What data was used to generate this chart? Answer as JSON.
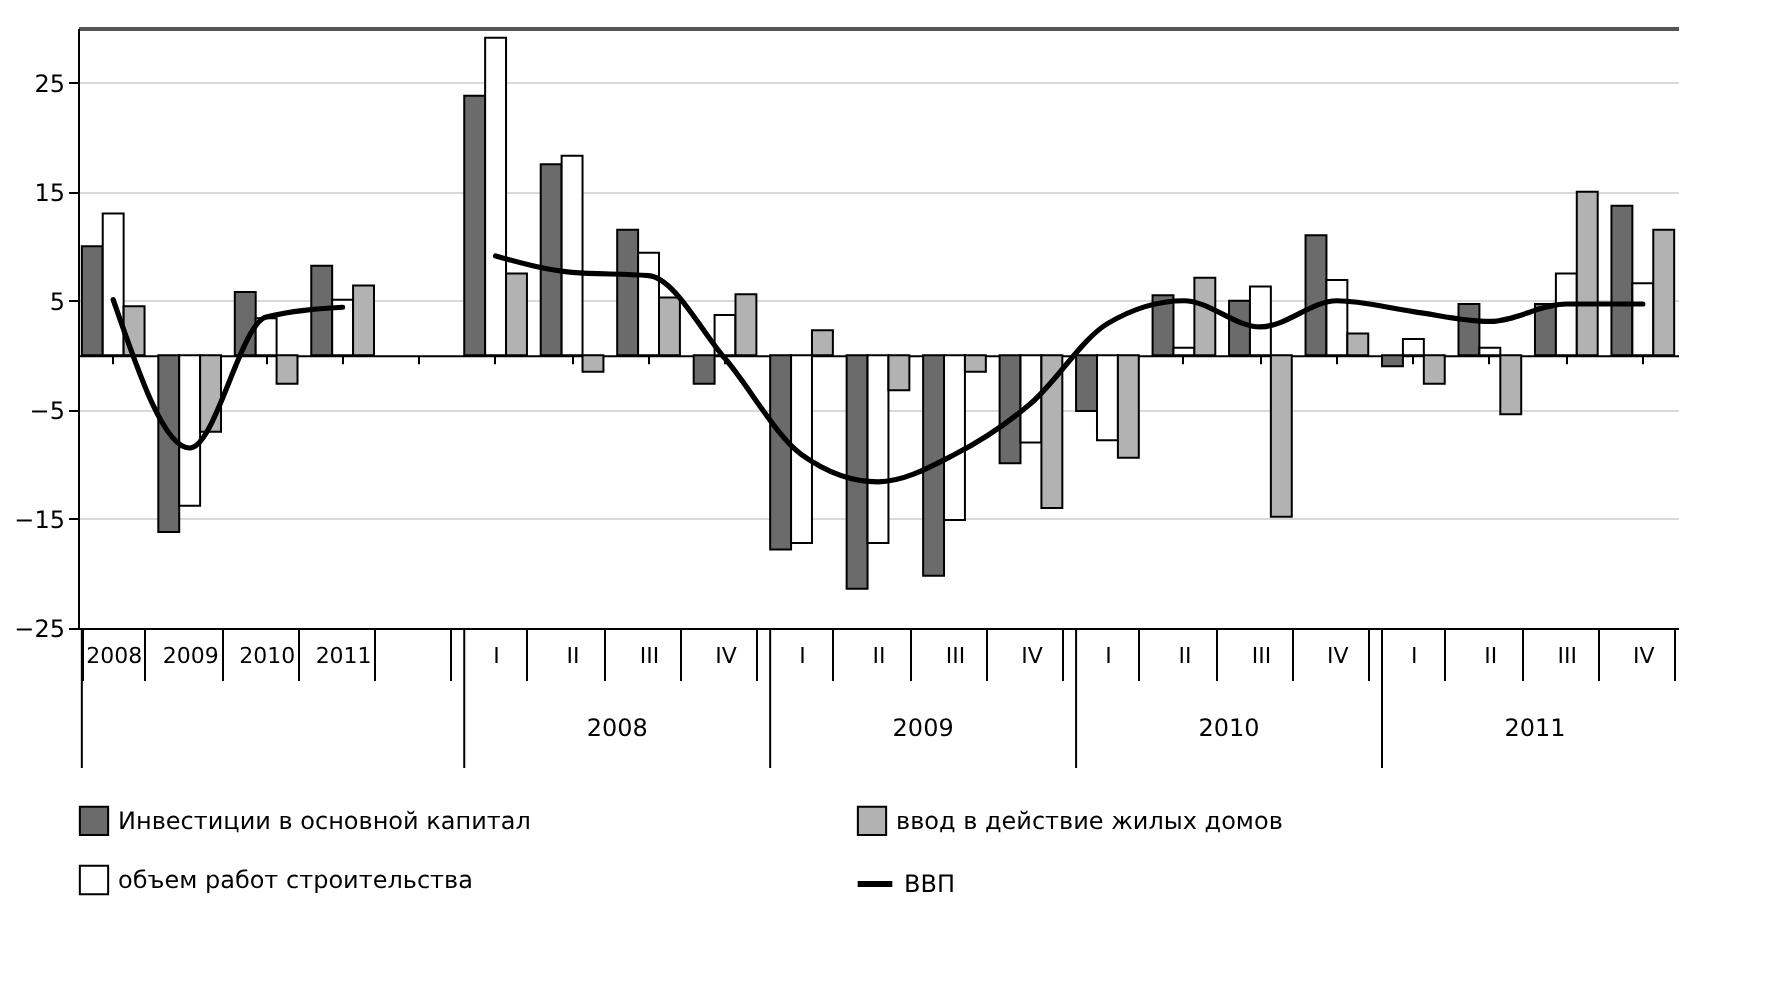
{
  "chart_data": {
    "type": "bar",
    "categories": [
      "2008",
      "2009",
      "2010",
      "2011",
      null,
      "I",
      "II",
      "III",
      "IV",
      "I",
      "II",
      "III",
      "IV",
      "I",
      "II",
      "III",
      "IV",
      "I",
      "II",
      "III",
      "IV"
    ],
    "series": [
      {
        "name": "Инвестиции в основной капитал",
        "color": "#6b6b6b",
        "values": [
          10,
          -16.2,
          5.8,
          8.2,
          null,
          23.8,
          17.5,
          11.5,
          -2.6,
          -17.8,
          -21.4,
          -20.2,
          -9.9,
          -5.1,
          5.5,
          5.0,
          11.0,
          -1.0,
          4.7,
          4.7,
          13.7
        ]
      },
      {
        "name": "объем работ строительства",
        "color": "#ffffff",
        "values": [
          13,
          -13.8,
          3.4,
          5.1,
          null,
          29.1,
          18.3,
          9.4,
          3.7,
          -17.2,
          -17.2,
          -15.1,
          -8.0,
          -7.8,
          0.7,
          6.3,
          6.9,
          1.5,
          0.7,
          7.5,
          6.6
        ]
      },
      {
        "name": "ввод в действие жилых домов",
        "color": "#b2b2b2",
        "values": [
          4.5,
          -7.0,
          -2.6,
          6.4,
          null,
          7.5,
          -1.5,
          5.3,
          5.6,
          2.3,
          -3.2,
          -1.5,
          -14.0,
          -9.4,
          7.1,
          -14.8,
          2.0,
          -2.6,
          -5.4,
          15.0,
          11.5
        ]
      },
      {
        "name": "ВВП",
        "type": "line",
        "color": "#000000",
        "values": [
          5.1,
          -8.5,
          3.5,
          4.4,
          null,
          9.1,
          7.6,
          7.3,
          -0.3,
          -9.1,
          -11.6,
          -9.1,
          -4.4,
          2.9,
          5.0,
          2.6,
          5.0,
          4.0,
          3.1,
          4.7,
          4.7
        ]
      }
    ],
    "annotations": [
      "2008",
      "2009",
      "2010",
      "2011"
    ],
    "ylim": [
      -25,
      30
    ],
    "yticks": [
      -25,
      -15,
      -5,
      5,
      15,
      25
    ],
    "grid": "y",
    "legend": "bottom"
  }
}
